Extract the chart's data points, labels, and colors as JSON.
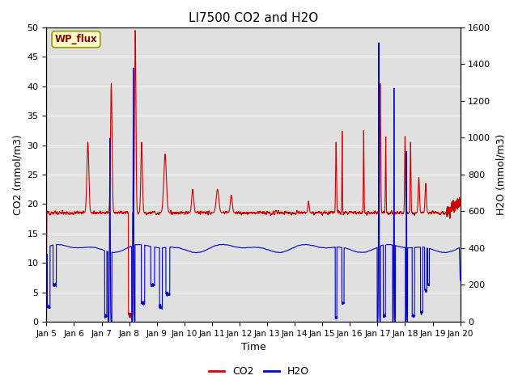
{
  "title": "LI7500 CO2 and H2O",
  "xlabel": "Time",
  "ylabel_left": "CO2 (mmol/m3)",
  "ylabel_right": "H2O (mmol/m3)",
  "xlim": [
    0,
    15
  ],
  "ylim_left": [
    0,
    50
  ],
  "ylim_right": [
    0,
    1600
  ],
  "yticks_left": [
    0,
    5,
    10,
    15,
    20,
    25,
    30,
    35,
    40,
    45,
    50
  ],
  "yticks_right": [
    0,
    200,
    400,
    600,
    800,
    1000,
    1200,
    1400,
    1600
  ],
  "xtick_labels": [
    "Jan 5",
    "Jan 6",
    "Jan 7",
    "Jan 8",
    "Jan 9",
    "Jan 10",
    "Jan 11",
    "Jan 12",
    "Jan 13",
    "Jan 14",
    "Jan 15",
    "Jan 16",
    "Jan 17",
    "Jan 18",
    "Jan 19",
    "Jan 20"
  ],
  "xtick_positions": [
    0,
    1,
    2,
    3,
    4,
    5,
    6,
    7,
    8,
    9,
    10,
    11,
    12,
    13,
    14,
    15
  ],
  "co2_color": "#cc0000",
  "h2o_color": "#0000cc",
  "bg_color": "#e0e0e0",
  "legend_label_co2": "CO2",
  "legend_label_h2o": "H2O",
  "annotation_text": "WP_flux",
  "grid_color": "#ffffff",
  "linewidth": 0.8,
  "fig_width": 6.4,
  "fig_height": 4.8,
  "dpi": 100
}
